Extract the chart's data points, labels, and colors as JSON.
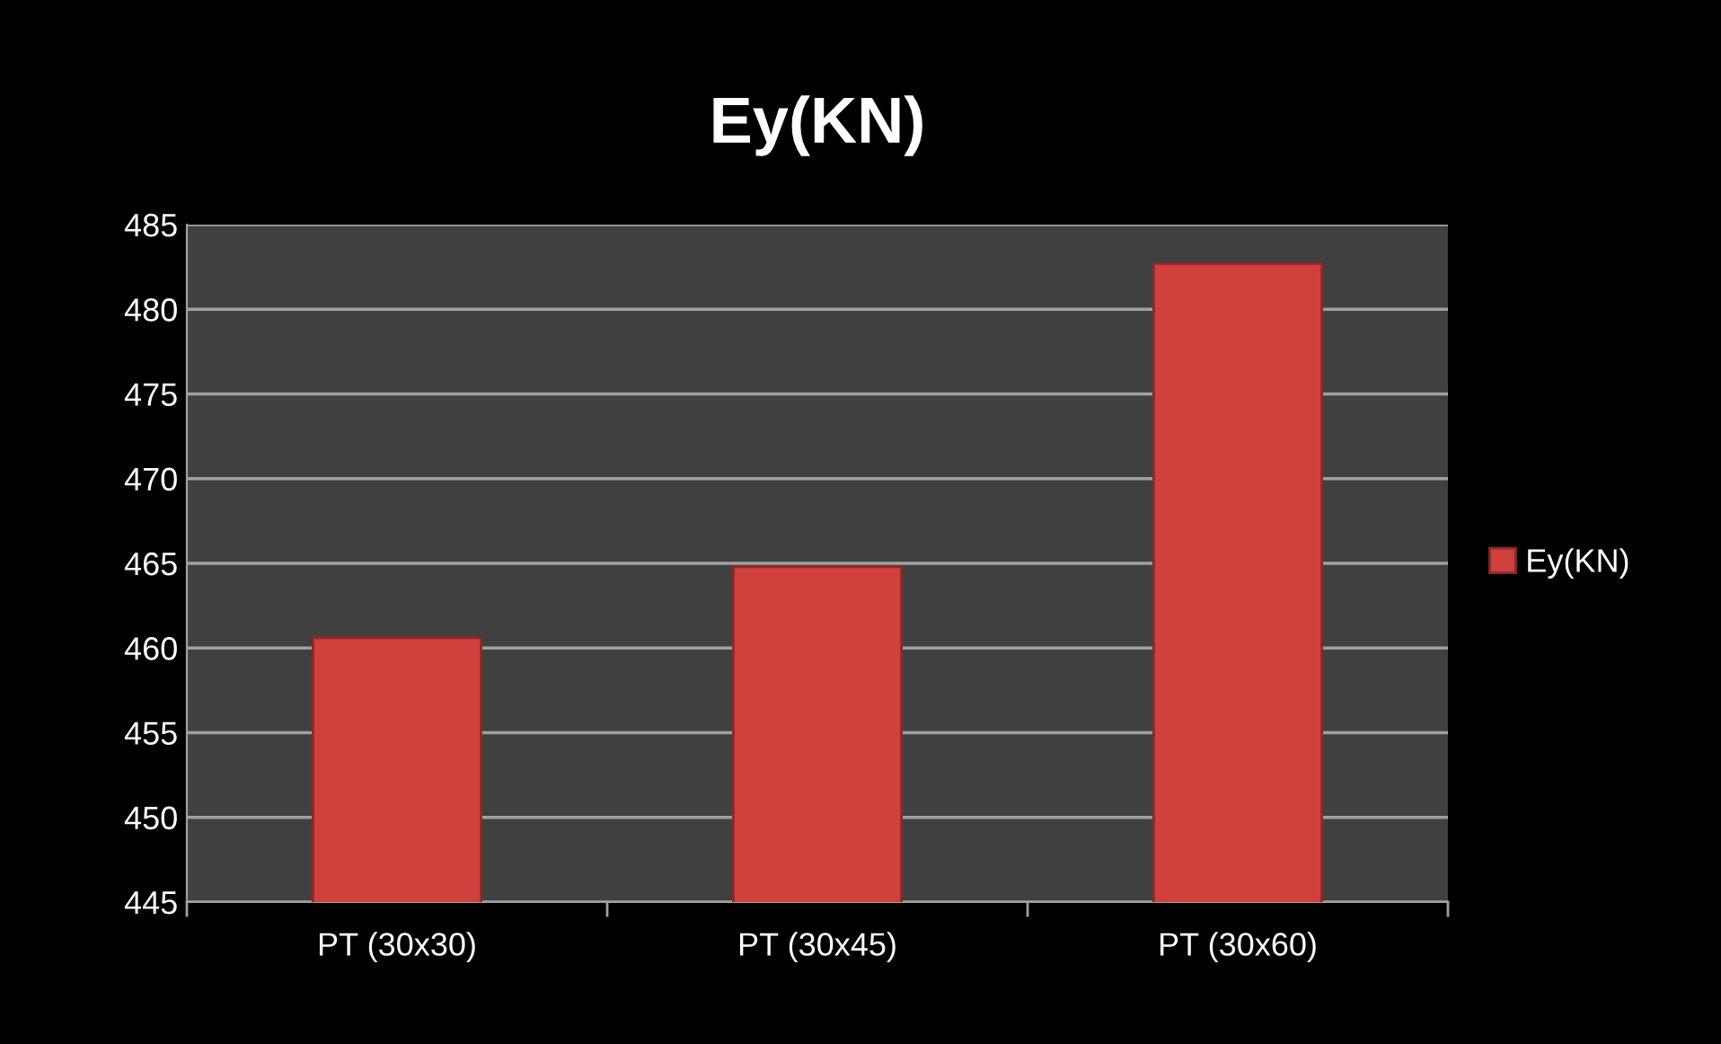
{
  "chart_data": {
    "type": "bar",
    "title": "Ey(KN)",
    "categories": [
      "PT (30x30)",
      "PT (30x45)",
      "PT (30x60)"
    ],
    "series": [
      {
        "name": "Ey(KN)",
        "color": "#d0403c",
        "values": [
          460.6,
          464.8,
          482.7
        ]
      }
    ],
    "ylim": [
      445,
      485
    ],
    "yticks": [
      445,
      450,
      455,
      460,
      465,
      470,
      475,
      480,
      485
    ],
    "grid": "y",
    "legend": "right"
  }
}
